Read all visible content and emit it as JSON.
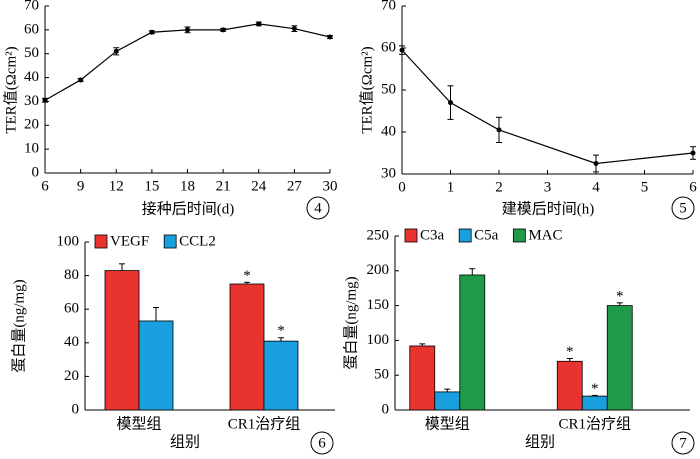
{
  "chart_data": [
    {
      "type": "line",
      "panel_label": "4",
      "x_label": "接种后时间(d)",
      "y_label": "TER值(Ωcm²)",
      "x": [
        6,
        9,
        12,
        15,
        18,
        21,
        24,
        27,
        30
      ],
      "series": [
        {
          "color": "#000000",
          "values": [
            30.5,
            39,
            51,
            59,
            60,
            60,
            62.5,
            60.5,
            57
          ],
          "errors": [
            0.8,
            0.6,
            1.5,
            0.6,
            1.2,
            0.6,
            0.8,
            1.2,
            0.6
          ]
        }
      ],
      "xlim": [
        6,
        30
      ],
      "xticks": [
        6,
        9,
        12,
        15,
        18,
        21,
        24,
        27,
        30
      ],
      "ylim": [
        0,
        70
      ],
      "yticks": [
        0,
        10,
        20,
        30,
        40,
        50,
        60,
        70
      ]
    },
    {
      "type": "line",
      "panel_label": "5",
      "x_label": "建模后时间(h)",
      "y_label": "TER值(Ωcm²)",
      "x": [
        0,
        1,
        2,
        4,
        6
      ],
      "series": [
        {
          "color": "#000000",
          "values": [
            59.5,
            47,
            40.5,
            32.5,
            35
          ],
          "errors": [
            1,
            4,
            3,
            2,
            1.5
          ]
        }
      ],
      "xlim": [
        0,
        6
      ],
      "xticks": [
        0,
        1,
        2,
        3,
        4,
        5,
        6
      ],
      "ylim": [
        30,
        70
      ],
      "yticks": [
        30,
        40,
        50,
        60,
        70
      ]
    },
    {
      "type": "bar",
      "panel_label": "6",
      "x_label": "组别",
      "y_label": "蛋白量(ng/mg)",
      "categories": [
        "模型组",
        "CR1治疗组"
      ],
      "series": [
        {
          "name": "VEGF",
          "color": "#e8332f",
          "values": [
            83,
            75
          ],
          "errors": [
            4,
            1
          ],
          "labels": [
            null,
            "*"
          ]
        },
        {
          "name": "CCL2",
          "color": "#1a9fde",
          "values": [
            53,
            41
          ],
          "errors": [
            8,
            2
          ],
          "labels": [
            null,
            "*"
          ]
        }
      ],
      "ylim": [
        0,
        100
      ],
      "yticks": [
        0,
        20,
        40,
        60,
        80,
        100
      ]
    },
    {
      "type": "bar",
      "panel_label": "7",
      "x_label": "组别",
      "y_label": "蛋白量(ng/mg)",
      "categories": [
        "模型组",
        "CR1治疗组"
      ],
      "series": [
        {
          "name": "C3a",
          "color": "#e8332f",
          "values": [
            92,
            70
          ],
          "errors": [
            3,
            4
          ],
          "labels": [
            null,
            "*"
          ]
        },
        {
          "name": "C5a",
          "color": "#1a9fde",
          "values": [
            26,
            20
          ],
          "errors": [
            4,
            1
          ],
          "labels": [
            null,
            "*"
          ]
        },
        {
          "name": "MAC",
          "color": "#1f9a48",
          "values": [
            194,
            150
          ],
          "errors": [
            9,
            4
          ],
          "labels": [
            null,
            "*"
          ]
        }
      ],
      "ylim": [
        0,
        250
      ],
      "yticks": [
        0,
        50,
        100,
        150,
        200,
        250
      ]
    }
  ]
}
